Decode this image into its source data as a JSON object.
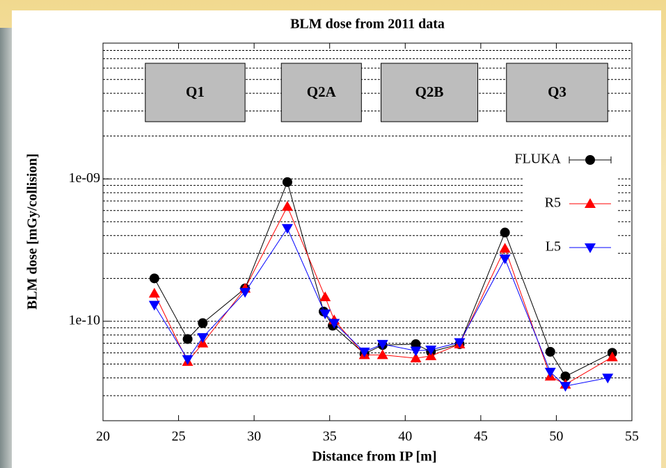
{
  "chart_data": {
    "type": "line",
    "title": "BLM dose from 2011 data",
    "x_label": "Distance from IP [m]",
    "y_label": "BLM dose [mGy/collision]",
    "xlim": [
      20,
      55
    ],
    "xticks": [
      20,
      25,
      30,
      35,
      40,
      45,
      50,
      55
    ],
    "ylim": [
      2e-11,
      9e-09
    ],
    "y_scale": "log",
    "yticks": [
      1e-10,
      {
        "value": 1e-09,
        "label": "1e-09"
      }
    ],
    "grid": true,
    "grid_values": [
      2e-11,
      3e-11,
      4e-11,
      5e-11,
      6e-11,
      7e-11,
      8e-11,
      9e-11,
      1e-10,
      2e-10,
      3e-10,
      4e-10,
      5e-10,
      6e-10,
      7e-10,
      8e-10,
      9e-10,
      1e-09,
      2e-09,
      3e-09,
      4e-09,
      5e-09,
      6e-09,
      7e-09,
      8e-09,
      9e-09
    ],
    "legend_position": "right",
    "magnets": [
      {
        "label": "Q1",
        "x": [
          22.8,
          29.4
        ]
      },
      {
        "label": "Q2A",
        "x": [
          31.8,
          37.1
        ]
      },
      {
        "label": "Q2B",
        "x": [
          38.4,
          44.8
        ]
      },
      {
        "label": "Q3",
        "x": [
          46.7,
          53.4
        ]
      }
    ],
    "series": [
      {
        "name": "FLUKA",
        "color": "#000000",
        "marker": "circle",
        "x": [
          23.4,
          25.6,
          26.6,
          29.4,
          32.2,
          34.6,
          35.2,
          37.3,
          38.5,
          40.7,
          41.7,
          43.6,
          46.6,
          49.6,
          50.6,
          53.7
        ],
        "values": [
          2e-10,
          7.5e-11,
          9.7e-11,
          1.7e-10,
          9.5e-10,
          1.17e-10,
          9.3e-11,
          5.9e-11,
          6.8e-11,
          6.9e-11,
          6.1e-11,
          6.9e-11,
          4.2e-10,
          6.1e-11,
          4.1e-11,
          6e-11
        ]
      },
      {
        "name": "R5",
        "color": "#ff0000",
        "marker": "triangle-up",
        "x": [
          23.4,
          25.6,
          26.6,
          29.4,
          32.2,
          34.7,
          35.3,
          37.3,
          38.5,
          40.7,
          41.7,
          43.6,
          46.6,
          49.6,
          50.6,
          53.7
        ],
        "values": [
          1.57e-10,
          5.2e-11,
          7e-11,
          1.7e-10,
          6.4e-10,
          1.48e-10,
          1.02e-10,
          5.8e-11,
          5.8e-11,
          5.5e-11,
          5.7e-11,
          6.9e-11,
          3.25e-10,
          4.1e-11,
          3.6e-11,
          5.6e-11
        ]
      },
      {
        "name": "L5",
        "color": "#0000ff",
        "marker": "triangle-down",
        "x": [
          23.4,
          25.6,
          26.6,
          29.4,
          32.2,
          34.7,
          35.3,
          37.3,
          38.5,
          40.7,
          41.7,
          43.6,
          46.6,
          49.6,
          50.6,
          53.4
        ],
        "values": [
          1.3e-10,
          5.4e-11,
          7.7e-11,
          1.6e-10,
          4.5e-10,
          1.13e-10,
          9.7e-11,
          6.1e-11,
          6.9e-11,
          6.2e-11,
          6.3e-11,
          7.1e-11,
          2.75e-10,
          4.4e-11,
          3.5e-11,
          4e-11
        ]
      }
    ]
  }
}
